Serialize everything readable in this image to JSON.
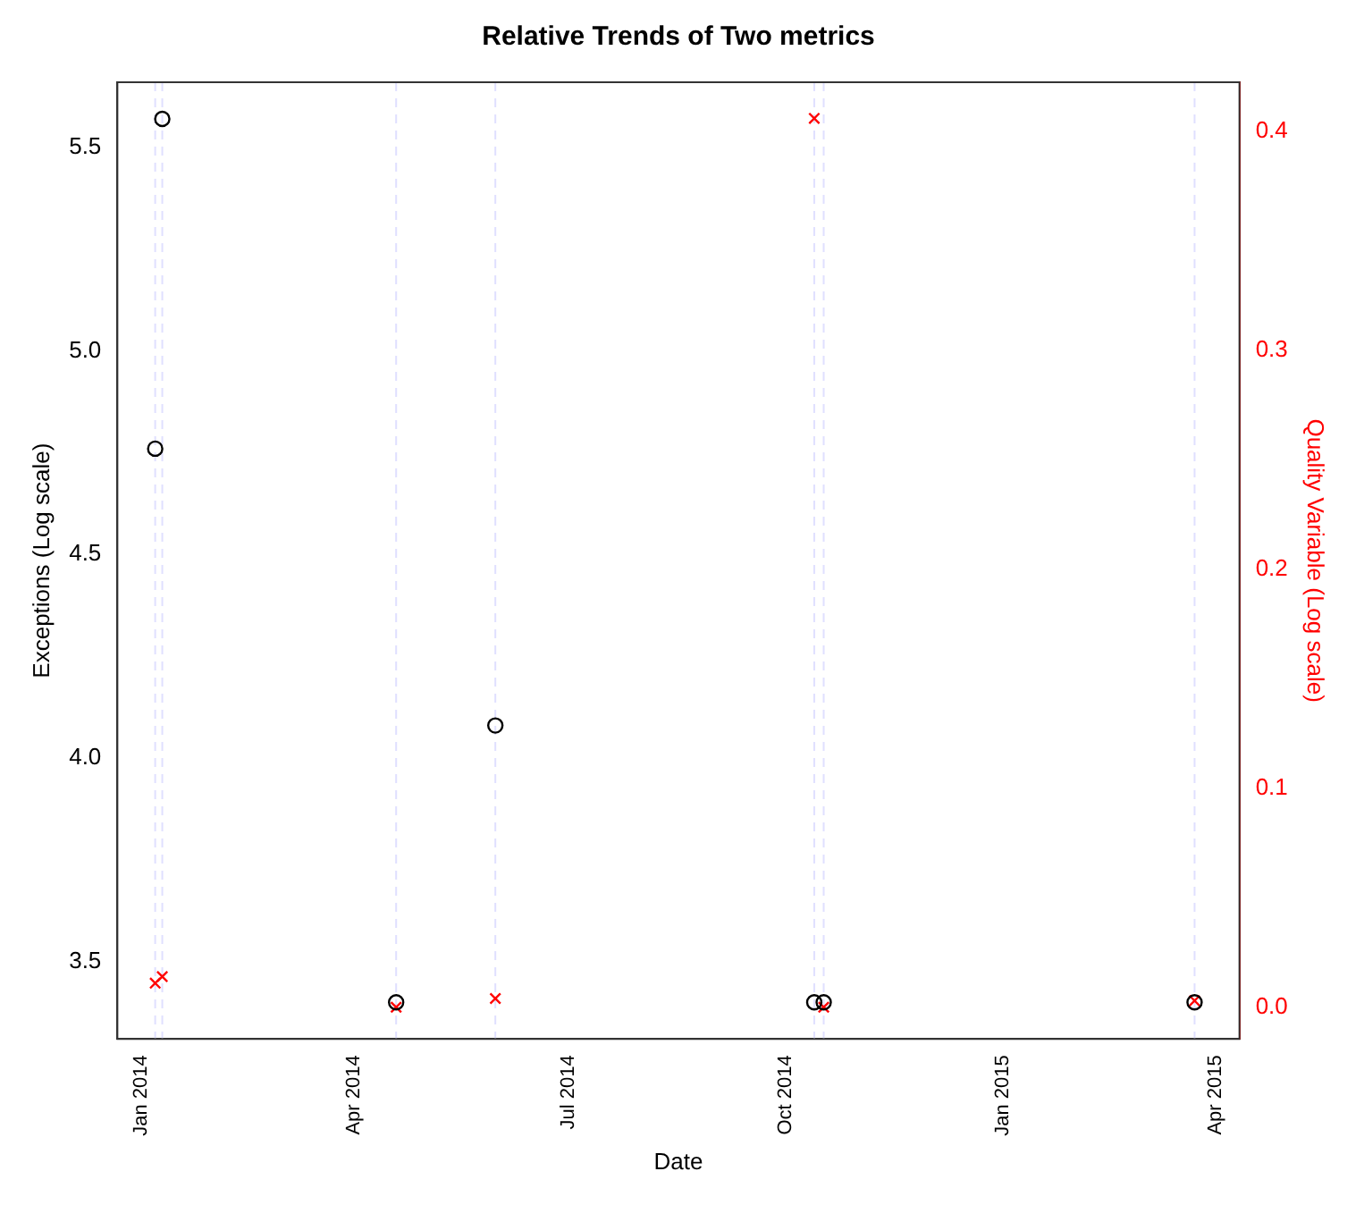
{
  "chart_data": {
    "type": "scatter",
    "title": "Relative Trends of Two metrics",
    "xlabel": "Date",
    "ylabel": "Exceptions (Log scale)",
    "y2label": "Quality Variable (Log scale)",
    "xlim": [
      "2013-12-22",
      "2015-04-11"
    ],
    "xticks": [
      {
        "value": "2014-01-01",
        "label": "Jan 2014"
      },
      {
        "value": "2014-04-01",
        "label": "Apr 2014"
      },
      {
        "value": "2014-07-01",
        "label": "Jul 2014"
      },
      {
        "value": "2014-10-01",
        "label": "Oct 2014"
      },
      {
        "value": "2015-01-01",
        "label": "Jan 2015"
      },
      {
        "value": "2015-04-01",
        "label": "Apr 2015"
      }
    ],
    "ylim": [
      3.31,
      5.66
    ],
    "yticks": [
      3.5,
      {
        "value": 4,
        "label": "4.0"
      },
      4.5,
      {
        "value": 5,
        "label": "5.0"
      },
      5.5
    ],
    "y2lim": [
      -0.0145,
      0.4225
    ],
    "y2ticks": [
      {
        "value": 0,
        "label": "0.0"
      },
      0.1,
      0.2,
      0.3,
      0.4
    ],
    "grid": false,
    "legend": false,
    "series": [
      {
        "color": "#000000",
        "marker": "circle",
        "x": [
          "2014-01-07",
          "2014-01-10",
          "2014-04-19",
          "2014-05-31",
          "2014-10-13",
          "2014-10-17",
          "2015-03-23"
        ],
        "values": [
          4.76,
          5.57,
          3.4,
          4.08,
          3.4,
          3.4,
          3.4
        ]
      },
      {
        "color": "#ff0000",
        "marker": "cross",
        "axis": "y2",
        "x": [
          "2014-01-07",
          "2014-01-10",
          "2014-04-19",
          "2014-05-31",
          "2014-10-13",
          "2014-10-17",
          "2015-03-23"
        ],
        "values": [
          0.011,
          0.014,
          0.0,
          0.004,
          0.406,
          0.0,
          0.003
        ]
      }
    ],
    "ref_lines": [
      {
        "axis": "x",
        "value": "2014-01-07",
        "color": "#e0e0ff",
        "line_style": "dashed"
      },
      {
        "axis": "x",
        "value": "2014-01-10",
        "color": "#e0e0ff",
        "line_style": "dashed"
      },
      {
        "axis": "x",
        "value": "2014-04-19",
        "color": "#e0e0ff",
        "line_style": "dashed"
      },
      {
        "axis": "x",
        "value": "2014-05-31",
        "color": "#e0e0ff",
        "line_style": "dashed"
      },
      {
        "axis": "x",
        "value": "2014-10-13",
        "color": "#e0e0ff",
        "line_style": "dashed"
      },
      {
        "axis": "x",
        "value": "2014-10-17",
        "color": "#e0e0ff",
        "line_style": "dashed"
      },
      {
        "axis": "x",
        "value": "2015-03-23",
        "color": "#e0e0ff",
        "line_style": "dashed"
      }
    ]
  }
}
